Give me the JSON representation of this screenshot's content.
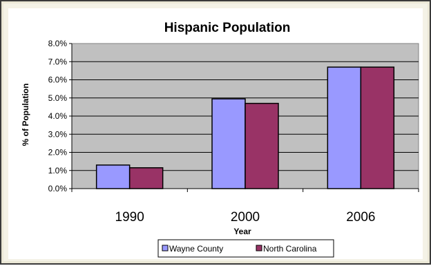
{
  "chart_data": {
    "type": "bar",
    "title": "Hispanic Population",
    "xlabel": "Year",
    "ylabel": "% of Population",
    "categories": [
      "1990",
      "2000",
      "2006"
    ],
    "series": [
      {
        "name": "Wayne County",
        "values": [
          1.3,
          4.95,
          6.7
        ],
        "color": "#9999ff"
      },
      {
        "name": "North Carolina",
        "values": [
          1.15,
          4.7,
          6.7
        ],
        "color": "#993366"
      }
    ],
    "ylim": [
      0,
      8
    ],
    "ytick_labels": [
      "0.0%",
      "1.0%",
      "2.0%",
      "3.0%",
      "4.0%",
      "5.0%",
      "6.0%",
      "7.0%",
      "8.0%"
    ],
    "grid": true,
    "plot_background": "#c0c0c0",
    "legend_position": "bottom"
  }
}
